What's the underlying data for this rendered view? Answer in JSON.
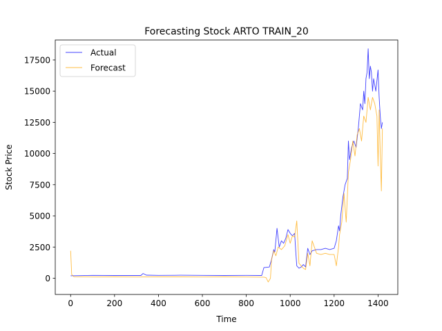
{
  "chart_data": {
    "type": "line",
    "title": "Forecasting Stock ARTO TRAIN_20",
    "xlabel": "Time",
    "ylabel": "Stock Price",
    "xlim": [
      -70,
      1490
    ],
    "ylim": [
      -1300,
      19100
    ],
    "xticks": [
      0,
      200,
      400,
      600,
      800,
      1000,
      1200,
      1400
    ],
    "yticks": [
      0,
      2500,
      5000,
      7500,
      10000,
      12500,
      15000,
      17500
    ],
    "xtick_labels": [
      "0",
      "200",
      "400",
      "600",
      "800",
      "1000",
      "1200",
      "1400"
    ],
    "ytick_labels": [
      "0",
      "2500",
      "5000",
      "7500",
      "10000",
      "12500",
      "15000",
      "17500"
    ],
    "legend_position": "top-left",
    "series": [
      {
        "name": "Actual",
        "color": "#0000ff",
        "x": [
          0,
          100,
          200,
          320,
          330,
          345,
          400,
          500,
          600,
          700,
          800,
          870,
          880,
          905,
          915,
          925,
          930,
          940,
          950,
          960,
          970,
          980,
          990,
          1000,
          1010,
          1020,
          1025,
          1030,
          1040,
          1050,
          1060,
          1070,
          1080,
          1090,
          1100,
          1120,
          1140,
          1160,
          1180,
          1200,
          1210,
          1220,
          1225,
          1230,
          1240,
          1250,
          1260,
          1265,
          1270,
          1280,
          1290,
          1300,
          1310,
          1320,
          1330,
          1335,
          1340,
          1345,
          1350,
          1355,
          1360,
          1365,
          1370,
          1375,
          1380,
          1385,
          1390,
          1400,
          1405,
          1410,
          1415,
          1420
        ],
        "values": [
          200,
          230,
          220,
          220,
          380,
          250,
          230,
          240,
          230,
          220,
          230,
          220,
          850,
          900,
          1500,
          2300,
          2100,
          4000,
          2500,
          3000,
          2800,
          3200,
          3900,
          3600,
          3400,
          3600,
          2200,
          1000,
          800,
          900,
          1100,
          900,
          2400,
          1900,
          2200,
          2300,
          2300,
          2400,
          2300,
          2400,
          3000,
          4200,
          3800,
          5000,
          6500,
          7500,
          8000,
          11000,
          9500,
          10500,
          11000,
          10500,
          12000,
          14000,
          13500,
          15000,
          14000,
          16000,
          16500,
          18400,
          16000,
          17000,
          16500,
          15000,
          16000,
          15500,
          15000,
          16700,
          14500,
          13000,
          12000,
          12500
        ]
      },
      {
        "name": "Forecast",
        "color": "#ffa500",
        "x": [
          0,
          5,
          15,
          100,
          200,
          300,
          400,
          500,
          600,
          700,
          800,
          880,
          890,
          900,
          910,
          915,
          925,
          935,
          945,
          960,
          975,
          990,
          1000,
          1010,
          1020,
          1030,
          1040,
          1050,
          1060,
          1070,
          1080,
          1090,
          1100,
          1120,
          1140,
          1160,
          1180,
          1190,
          1200,
          1210,
          1220,
          1225,
          1235,
          1245,
          1255,
          1265,
          1275,
          1285,
          1295,
          1305,
          1315,
          1325,
          1335,
          1345,
          1355,
          1365,
          1375,
          1385,
          1395,
          1400,
          1405,
          1410,
          1415,
          1420
        ],
        "values": [
          2200,
          300,
          120,
          100,
          110,
          100,
          110,
          110,
          100,
          110,
          100,
          90,
          50,
          -300,
          0,
          1500,
          2200,
          1800,
          2500,
          2300,
          2600,
          3500,
          2800,
          3400,
          3300,
          4600,
          1200,
          1000,
          800,
          700,
          2000,
          1000,
          3000,
          2000,
          1900,
          2000,
          1900,
          1900,
          1900,
          1000,
          2500,
          3500,
          4500,
          6800,
          4500,
          8500,
          9500,
          11000,
          9800,
          11500,
          12000,
          11000,
          13000,
          12500,
          14500,
          13500,
          14500,
          14000,
          13000,
          9000,
          13500,
          10000,
          7000,
          12000
        ]
      }
    ]
  }
}
